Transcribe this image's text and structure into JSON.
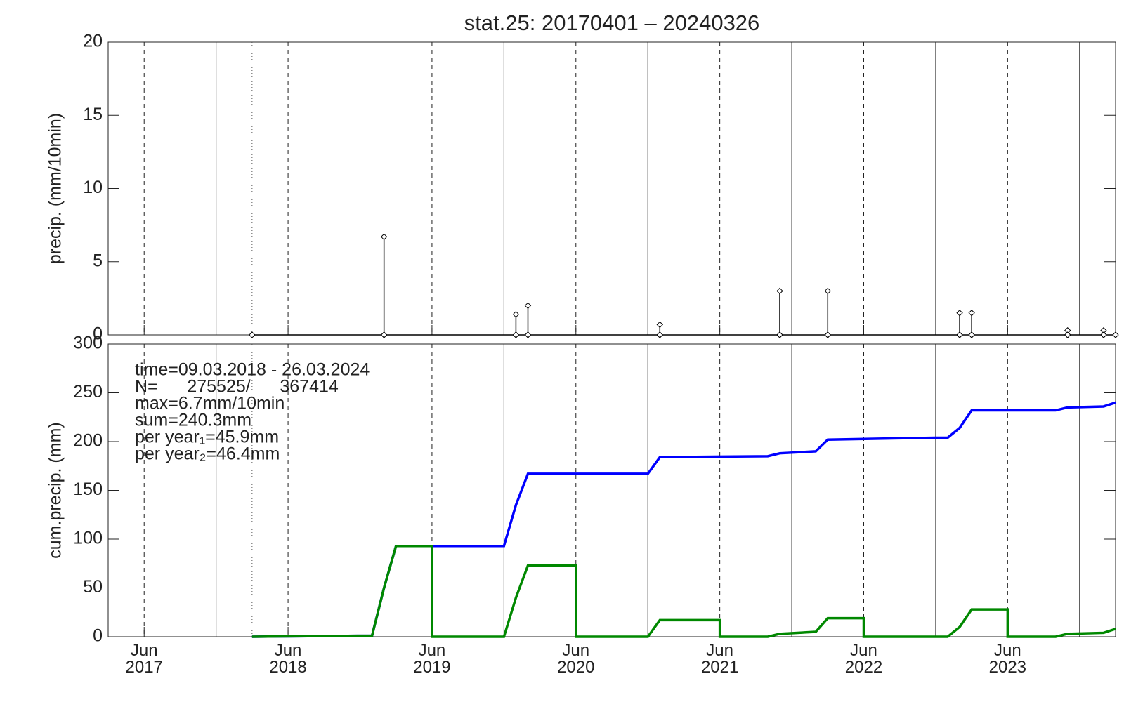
{
  "chart_data": [
    {
      "type": "line",
      "title": "stat.25: 20170401 – 20240326",
      "ylabel": "precip. (mm/10min)",
      "xlim": [
        "2017-03",
        "2024-03"
      ],
      "xticks": [
        "2017-06",
        "2018-06",
        "2019-06",
        "2020-06",
        "2021-06",
        "2022-06",
        "2023-06"
      ],
      "ylim": [
        0,
        20
      ],
      "yticks": [
        0,
        5,
        10,
        15,
        20
      ],
      "series": [
        {
          "color": "#000000",
          "marker": "diamond",
          "x": [
            "2018-03",
            "2019-02",
            "2019-02",
            "2019-02",
            "2020-01",
            "2020-01",
            "2020-01",
            "2020-02",
            "2020-02",
            "2020-02",
            "2021-01",
            "2021-01",
            "2021-01",
            "2021-11",
            "2021-11",
            "2021-11",
            "2022-03",
            "2022-03",
            "2022-03",
            "2023-02",
            "2023-02",
            "2023-02",
            "2023-03",
            "2023-03",
            "2023-03",
            "2023-11",
            "2023-11",
            "2023-11",
            "2024-02",
            "2024-02",
            "2024-02",
            "2024-03"
          ],
          "values": [
            0,
            0,
            6.7,
            0,
            0,
            1.4,
            0,
            0,
            2.0,
            0,
            0,
            0.7,
            0,
            0,
            3.0,
            0,
            0,
            3.0,
            0,
            0,
            1.5,
            0,
            0,
            1.5,
            0,
            0,
            0.3,
            0,
            0,
            0.3,
            0,
            0
          ]
        }
      ]
    },
    {
      "type": "line",
      "ylabel": "cum.precip. (mm)",
      "xlim": [
        "2017-03",
        "2024-03"
      ],
      "xticks": [
        {
          "value": "2017-06",
          "label": "Jun 2017"
        },
        {
          "value": "2018-06",
          "label": "Jun 2018"
        },
        {
          "value": "2019-06",
          "label": "Jun 2019"
        },
        {
          "value": "2020-06",
          "label": "Jun 2020"
        },
        {
          "value": "2021-06",
          "label": "Jun 2021"
        },
        {
          "value": "2022-06",
          "label": "Jun 2022"
        },
        {
          "value": "2023-06",
          "label": "Jun 2023"
        }
      ],
      "ylim": [
        0,
        300
      ],
      "yticks": [
        0,
        50,
        100,
        150,
        200,
        250,
        300
      ],
      "annotations": [
        "time=09.03.2018 - 26.03.2024",
        "N=      275525/      367414",
        "max=6.7mm/10min",
        "sum=240.3mm",
        "per year₁=45.9mm",
        "per year₂=46.4mm"
      ],
      "series": [
        {
          "color": "#0000ff",
          "x": [
            "2018-03",
            "2018-12",
            "2019-01",
            "2019-02",
            "2019-03",
            "2019-12",
            "2020-01",
            "2020-02",
            "2020-12",
            "2021-01",
            "2021-10",
            "2021-11",
            "2022-02",
            "2022-03",
            "2022-12",
            "2023-01",
            "2023-02",
            "2023-03",
            "2023-10",
            "2023-11",
            "2024-02",
            "2024-03"
          ],
          "values": [
            0,
            1,
            1,
            50,
            93,
            93,
            135,
            167,
            167,
            184,
            185,
            188,
            190,
            202,
            204,
            204,
            214,
            232,
            232,
            235,
            236,
            240
          ]
        },
        {
          "color": "#008800",
          "x": [
            "2018-03",
            "2018-12",
            "2019-01",
            "2019-02",
            "2019-03",
            "2019-06",
            "2019-06",
            "2019-12",
            "2020-01",
            "2020-02",
            "2020-06",
            "2020-06",
            "2020-12",
            "2021-01",
            "2021-06",
            "2021-06",
            "2021-10",
            "2021-11",
            "2022-02",
            "2022-03",
            "2022-06",
            "2022-06",
            "2023-01",
            "2023-02",
            "2023-03",
            "2023-06",
            "2023-06",
            "2023-10",
            "2023-11",
            "2024-02",
            "2024-03"
          ],
          "values": [
            0,
            1,
            1,
            50,
            93,
            93,
            0,
            0,
            40,
            73,
            73,
            0,
            0,
            17,
            17,
            0,
            0,
            3,
            5,
            19,
            19,
            0,
            0,
            10,
            28,
            28,
            0,
            0,
            3,
            4,
            8
          ]
        }
      ]
    }
  ]
}
